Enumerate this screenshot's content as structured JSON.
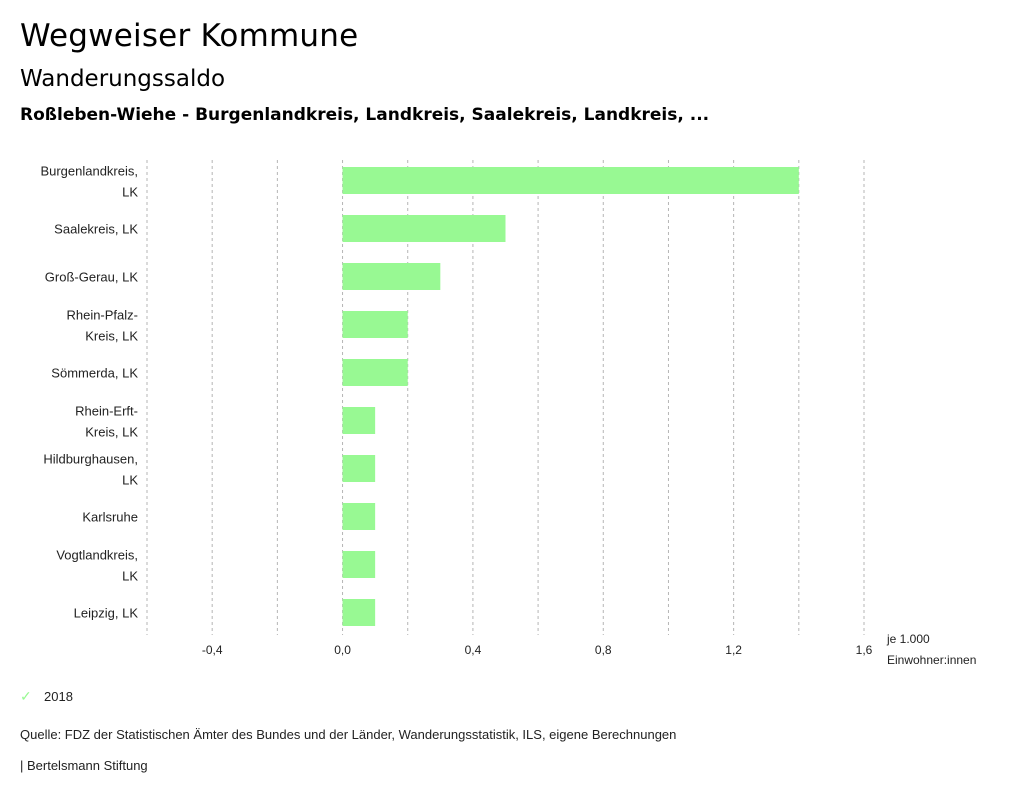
{
  "header": {
    "title": "Wegweiser Kommune",
    "subtitle": "Wanderungssaldo",
    "region": "Roßleben-Wiehe - Burgenlandkreis, Landkreis, Saalekreis, Landkreis, ..."
  },
  "chart_data": {
    "type": "bar",
    "orientation": "horizontal",
    "title": "Wanderungssaldo",
    "categories": [
      [
        "Burgenlandkreis,",
        "LK"
      ],
      [
        "Saalekreis, LK"
      ],
      [
        "Groß-Gerau, LK"
      ],
      [
        "Rhein-Pfalz-",
        "Kreis, LK"
      ],
      [
        "Sömmerda, LK"
      ],
      [
        "Rhein-Erft-",
        "Kreis, LK"
      ],
      [
        "Hildburghausen,",
        "LK"
      ],
      [
        "Karlsruhe"
      ],
      [
        "Vogtlandkreis,",
        "LK"
      ],
      [
        "Leipzig, LK"
      ]
    ],
    "series": [
      {
        "name": "2018",
        "color": "#98f993",
        "values": [
          1.4,
          0.5,
          0.3,
          0.2,
          0.2,
          0.1,
          0.1,
          0.1,
          0.1,
          0.1
        ]
      }
    ],
    "xlim": [
      -0.6,
      1.6
    ],
    "gridlines": [
      -0.6,
      -0.4,
      -0.2,
      0.0,
      0.2,
      0.4,
      0.6,
      0.8,
      1.0,
      1.2,
      1.4,
      1.6
    ],
    "ticks": [
      {
        "value": -0.4,
        "label": "-0,4"
      },
      {
        "value": 0.0,
        "label": "0,0"
      },
      {
        "value": 0.4,
        "label": "0,4"
      },
      {
        "value": 0.8,
        "label": "0,8"
      },
      {
        "value": 1.2,
        "label": "1,2"
      },
      {
        "value": 1.6,
        "label": "1,6"
      }
    ],
    "xlabel": [
      "je 1.000",
      "Einwohner:innen"
    ],
    "grid": true,
    "legend_position": "bottom-left"
  },
  "legend": {
    "items": [
      {
        "label": "2018",
        "icon": "check-icon",
        "color": "#98f993"
      }
    ]
  },
  "footer": {
    "source": "Quelle: FDZ der Statistischen Ämter des Bundes und der Länder, Wanderungsstatistik, ILS, eigene Berechnungen",
    "credit": "| Bertelsmann Stiftung"
  }
}
